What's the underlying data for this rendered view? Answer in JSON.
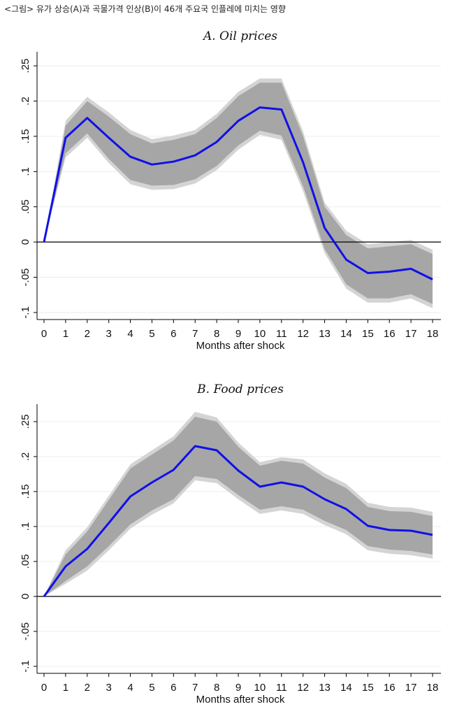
{
  "caption": "<그림> 유가 상승(A)과 곡물가격 인상(B)이 46개 주요국 인플레에 미치는 영향",
  "colors": {
    "line": "#1010e8",
    "band_inner": "#a6a6a6",
    "band_outer": "#d4d4d4",
    "grid": "#e8eef2",
    "zero": "#000000"
  },
  "chart_data": [
    {
      "type": "line",
      "title": "A.  Oil prices",
      "xlabel": "Months after shock",
      "ylabel": "",
      "x": [
        0,
        1,
        2,
        3,
        4,
        5,
        6,
        7,
        8,
        9,
        10,
        11,
        12,
        13,
        14,
        15,
        16,
        17,
        18
      ],
      "xtick_labels": [
        "0",
        "1",
        "2",
        "3",
        "4",
        "5",
        "6",
        "7",
        "8",
        "9",
        "10",
        "11",
        "12",
        "13",
        "14",
        "15",
        "16",
        "17",
        "18"
      ],
      "ytick_values": [
        -0.1,
        -0.05,
        0,
        0.05,
        0.1,
        0.15,
        0.2,
        0.25
      ],
      "ytick_labels": [
        "-.1",
        "-.05",
        "0",
        ".05",
        ".1",
        ".15",
        ".2",
        ".25"
      ],
      "ylim": [
        -0.11,
        0.27
      ],
      "xlim": [
        0,
        18
      ],
      "series": [
        {
          "name": "estimate",
          "values": [
            0,
            0.148,
            0.176,
            0.148,
            0.121,
            0.11,
            0.114,
            0.123,
            0.142,
            0.172,
            0.191,
            0.188,
            0.113,
            0.02,
            -0.025,
            -0.044,
            -0.042,
            -0.038,
            -0.053
          ]
        },
        {
          "name": "inner_upper",
          "values": [
            0,
            0.165,
            0.2,
            0.178,
            0.153,
            0.14,
            0.145,
            0.153,
            0.176,
            0.207,
            0.226,
            0.226,
            0.15,
            0.05,
            0.01,
            -0.009,
            -0.006,
            -0.003,
            -0.017
          ]
        },
        {
          "name": "inner_lower",
          "values": [
            0,
            0.126,
            0.154,
            0.118,
            0.088,
            0.08,
            0.081,
            0.089,
            0.108,
            0.137,
            0.158,
            0.151,
            0.079,
            -0.01,
            -0.06,
            -0.08,
            -0.08,
            -0.074,
            -0.088
          ]
        },
        {
          "name": "outer_upper",
          "values": [
            0,
            0.172,
            0.206,
            0.184,
            0.159,
            0.146,
            0.151,
            0.159,
            0.182,
            0.213,
            0.232,
            0.232,
            0.157,
            0.056,
            0.016,
            -0.003,
            0.0,
            0.003,
            -0.011
          ]
        },
        {
          "name": "outer_lower",
          "values": [
            0,
            0.12,
            0.148,
            0.112,
            0.082,
            0.074,
            0.075,
            0.083,
            0.102,
            0.131,
            0.152,
            0.145,
            0.072,
            -0.016,
            -0.066,
            -0.086,
            -0.086,
            -0.08,
            -0.094
          ]
        }
      ]
    },
    {
      "type": "line",
      "title": "B.  Food prices",
      "xlabel": "Months after shock",
      "ylabel": "",
      "x": [
        0,
        1,
        2,
        3,
        4,
        5,
        6,
        7,
        8,
        9,
        10,
        11,
        12,
        13,
        14,
        15,
        16,
        17,
        18
      ],
      "xtick_labels": [
        "0",
        "1",
        "2",
        "3",
        "4",
        "5",
        "6",
        "7",
        "8",
        "9",
        "10",
        "11",
        "12",
        "13",
        "14",
        "15",
        "16",
        "17",
        "18"
      ],
      "ytick_values": [
        -0.1,
        -0.05,
        0,
        0.05,
        0.1,
        0.15,
        0.2,
        0.25
      ],
      "ytick_labels": [
        "-.1",
        "-.05",
        "0",
        ".05",
        ".1",
        ".15",
        ".2",
        ".25"
      ],
      "ylim": [
        -0.11,
        0.275
      ],
      "xlim": [
        0,
        18
      ],
      "series": [
        {
          "name": "estimate",
          "values": [
            0,
            0.043,
            0.068,
            0.105,
            0.143,
            0.163,
            0.181,
            0.215,
            0.209,
            0.18,
            0.157,
            0.163,
            0.157,
            0.139,
            0.125,
            0.101,
            0.095,
            0.094,
            0.088
          ]
        },
        {
          "name": "inner_upper",
          "values": [
            0,
            0.06,
            0.093,
            0.138,
            0.183,
            0.203,
            0.223,
            0.257,
            0.25,
            0.214,
            0.187,
            0.194,
            0.19,
            0.17,
            0.155,
            0.128,
            0.122,
            0.121,
            0.115
          ]
        },
        {
          "name": "inner_lower",
          "values": [
            0,
            0.022,
            0.043,
            0.072,
            0.103,
            0.123,
            0.139,
            0.172,
            0.168,
            0.145,
            0.124,
            0.129,
            0.124,
            0.108,
            0.095,
            0.072,
            0.067,
            0.065,
            0.06
          ]
        },
        {
          "name": "outer_upper",
          "values": [
            0,
            0.066,
            0.099,
            0.144,
            0.189,
            0.209,
            0.229,
            0.264,
            0.256,
            0.22,
            0.192,
            0.199,
            0.196,
            0.176,
            0.161,
            0.134,
            0.128,
            0.127,
            0.121
          ]
        },
        {
          "name": "outer_lower",
          "values": [
            0,
            0.018,
            0.037,
            0.066,
            0.097,
            0.117,
            0.133,
            0.166,
            0.162,
            0.139,
            0.118,
            0.123,
            0.118,
            0.102,
            0.089,
            0.066,
            0.061,
            0.059,
            0.054
          ]
        }
      ]
    }
  ]
}
